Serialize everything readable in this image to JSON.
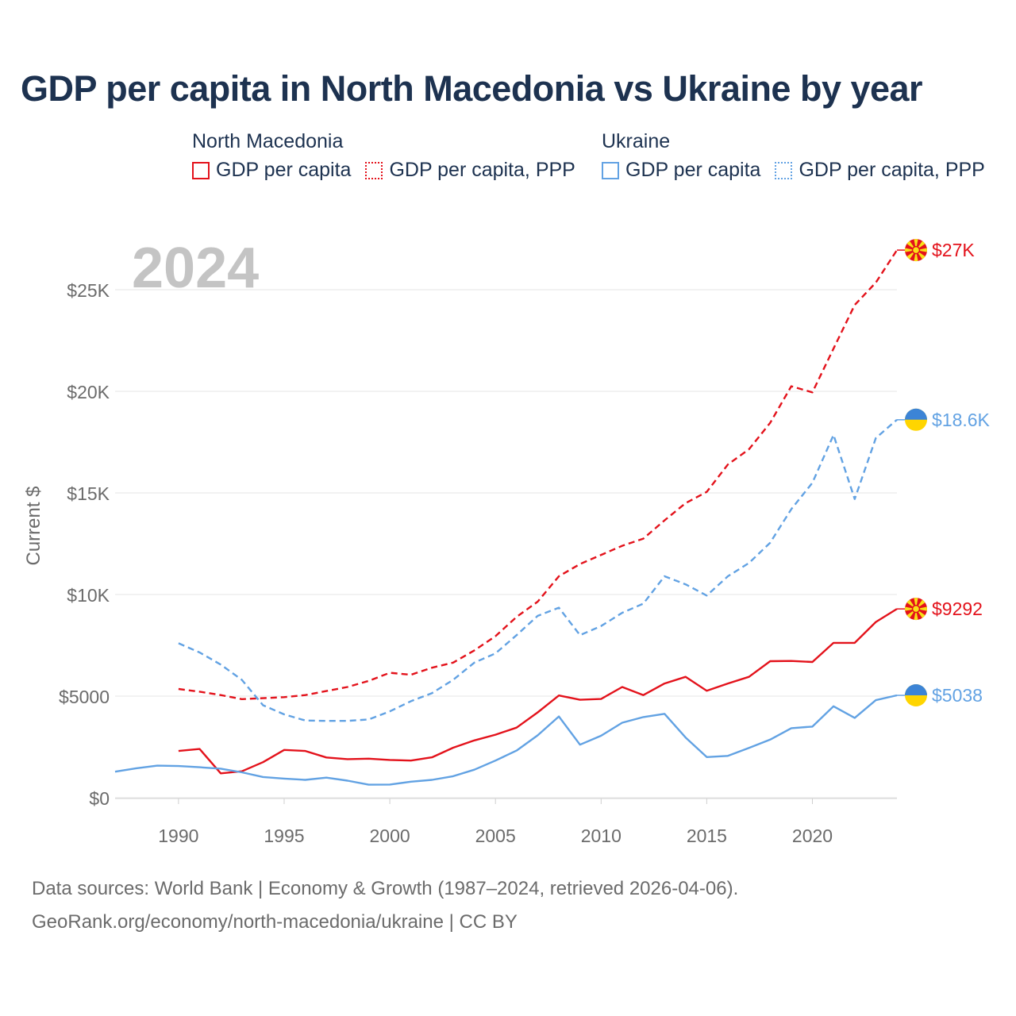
{
  "title": "GDP per capita in North Macedonia vs Ukraine by year",
  "legend": {
    "groups": [
      {
        "name": "North Macedonia",
        "color": "#e3121b",
        "items": [
          {
            "label": "GDP per capita",
            "style": "solid"
          },
          {
            "label": "GDP per capita, PPP",
            "style": "dotted"
          }
        ]
      },
      {
        "name": "Ukraine",
        "color": "#62a2e3",
        "items": [
          {
            "label": "GDP per capita",
            "style": "solid"
          },
          {
            "label": "GDP per capita, PPP",
            "style": "dotted"
          }
        ]
      }
    ]
  },
  "footer": {
    "source": "Data sources: World Bank | Economy & Growth (1987–2024, retrieved 2026-04-06).",
    "credit": "GeoRank.org/economy/north-macedonia/ukraine | CC BY"
  },
  "chart_data": {
    "type": "line",
    "title": "GDP per capita in North Macedonia vs Ukraine by year",
    "year_label": "2024",
    "xlabel": "",
    "ylabel": "Current $",
    "xlim": [
      1987,
      2024
    ],
    "ylim": [
      0,
      27500
    ],
    "x_ticks": [
      1990,
      1995,
      2000,
      2005,
      2010,
      2015,
      2020
    ],
    "x_tick_labels": [
      "1990",
      "1995",
      "2000",
      "2005",
      "2010",
      "2015",
      "2020"
    ],
    "y_ticks": [
      0,
      5000,
      10000,
      15000,
      20000,
      25000
    ],
    "y_tick_labels": [
      "$0",
      "$5000",
      "$10K",
      "$15K",
      "$20K",
      "$25K"
    ],
    "grid": true,
    "series": [
      {
        "name": "North Macedonia GDP per capita, PPP",
        "country": "North Macedonia",
        "color": "#e3121b",
        "dash": true,
        "end_label": "$27K",
        "flag": "mk",
        "x": [
          1990,
          1991,
          1992,
          1993,
          1994,
          1995,
          1996,
          1997,
          1998,
          1999,
          2000,
          2001,
          2002,
          2003,
          2004,
          2005,
          2006,
          2007,
          2008,
          2009,
          2010,
          2011,
          2012,
          2013,
          2014,
          2015,
          2016,
          2017,
          2018,
          2019,
          2020,
          2021,
          2022,
          2023,
          2024
        ],
        "values": [
          5350,
          5220,
          5050,
          4850,
          4900,
          4950,
          5050,
          5250,
          5450,
          5750,
          6150,
          6050,
          6400,
          6650,
          7250,
          7950,
          8900,
          9650,
          10900,
          11500,
          11950,
          12400,
          12750,
          13650,
          14500,
          15050,
          16400,
          17150,
          18450,
          20250,
          19950,
          22100,
          24250,
          25350,
          26950
        ]
      },
      {
        "name": "Ukraine GDP per capita, PPP",
        "country": "Ukraine",
        "color": "#62a2e3",
        "dash": true,
        "end_label": "$18.6K",
        "flag": "ua",
        "x": [
          1990,
          1991,
          1992,
          1993,
          1994,
          1995,
          1996,
          1997,
          1998,
          1999,
          2000,
          2001,
          2002,
          2003,
          2004,
          2005,
          2006,
          2007,
          2008,
          2009,
          2010,
          2011,
          2012,
          2013,
          2014,
          2015,
          2016,
          2017,
          2018,
          2019,
          2020,
          2021,
          2022,
          2023,
          2024
        ],
        "values": [
          7600,
          7150,
          6550,
          5800,
          4550,
          4100,
          3800,
          3780,
          3780,
          3850,
          4250,
          4750,
          5150,
          5800,
          6650,
          7100,
          8000,
          8950,
          9350,
          8000,
          8450,
          9100,
          9550,
          10900,
          10500,
          9950,
          10900,
          11550,
          12550,
          14200,
          15500,
          17850,
          14700,
          17700,
          18600
        ]
      },
      {
        "name": "North Macedonia GDP per capita",
        "country": "North Macedonia",
        "color": "#e3121b",
        "dash": false,
        "end_label": "$9292",
        "flag": "mk",
        "x": [
          1990,
          1991,
          1992,
          1993,
          1994,
          1995,
          1996,
          1997,
          1998,
          1999,
          2000,
          2001,
          2002,
          2003,
          2004,
          2005,
          2006,
          2007,
          2008,
          2009,
          2010,
          2011,
          2012,
          2013,
          2014,
          2015,
          2016,
          2017,
          2018,
          2019,
          2020,
          2021,
          2022,
          2023,
          2024
        ],
        "values": [
          2300,
          2400,
          1200,
          1300,
          1750,
          2350,
          2300,
          1980,
          1900,
          1920,
          1860,
          1830,
          1990,
          2460,
          2820,
          3100,
          3450,
          4200,
          5030,
          4820,
          4860,
          5450,
          5050,
          5620,
          5950,
          5260,
          5620,
          5950,
          6720,
          6730,
          6680,
          7620,
          7620,
          8650,
          9292
        ]
      },
      {
        "name": "Ukraine GDP per capita",
        "country": "Ukraine",
        "color": "#62a2e3",
        "dash": false,
        "end_label": "$5038",
        "flag": "ua",
        "x": [
          1987,
          1988,
          1989,
          1990,
          1991,
          1992,
          1993,
          1994,
          1995,
          1996,
          1997,
          1998,
          1999,
          2000,
          2001,
          2002,
          2003,
          2004,
          2005,
          2006,
          2007,
          2008,
          2009,
          2010,
          2011,
          2012,
          2013,
          2014,
          2015,
          2016,
          2017,
          2018,
          2019,
          2020,
          2021,
          2022,
          2023,
          2024
        ],
        "values": [
          1280,
          1450,
          1580,
          1560,
          1500,
          1430,
          1250,
          1020,
          940,
          880,
          990,
          840,
          640,
          650,
          790,
          880,
          1060,
          1380,
          1830,
          2320,
          3070,
          4000,
          2610,
          3050,
          3690,
          3970,
          4130,
          2960,
          2000,
          2060,
          2450,
          2860,
          3420,
          3500,
          4500,
          3930,
          4800,
          5038
        ]
      }
    ]
  }
}
